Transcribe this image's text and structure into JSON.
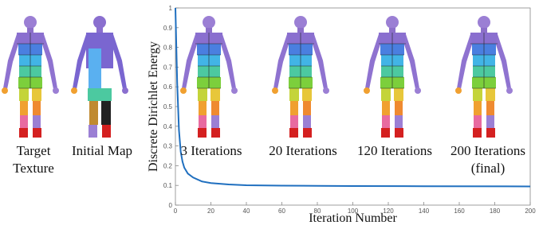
{
  "chart_data": {
    "type": "line",
    "x_label": "Iteration Number",
    "y_label": "Discrete Dirichlet Energy",
    "x": [
      0,
      1,
      2,
      3,
      4,
      5,
      7,
      10,
      15,
      20,
      30,
      40,
      60,
      80,
      100,
      140,
      200
    ],
    "series": [
      {
        "color": "#1f6fbf",
        "values": [
          1,
          0.62,
          0.38,
          0.27,
          0.22,
          0.19,
          0.16,
          0.14,
          0.12,
          0.112,
          0.105,
          0.101,
          0.099,
          0.098,
          0.097,
          0.096,
          0.095
        ]
      }
    ],
    "xlim": [
      0,
      200
    ],
    "ylim": [
      0,
      1
    ],
    "xticks": [
      0,
      20,
      40,
      60,
      80,
      100,
      120,
      140,
      160,
      180,
      200
    ],
    "yticks": [
      0,
      0.1,
      0.2,
      0.3,
      0.4,
      0.5,
      0.6,
      0.7,
      0.8,
      0.9,
      1
    ]
  },
  "left_panels": [
    {
      "caption": [
        "Target",
        "Texture"
      ]
    },
    {
      "caption": [
        "Initial Map"
      ]
    }
  ],
  "insets": [
    {
      "caption": [
        "3 Iterations"
      ]
    },
    {
      "caption": [
        "20 Iterations"
      ]
    },
    {
      "caption": [
        "120 Iterations"
      ]
    },
    {
      "caption": [
        "200 Iterations",
        "(final)"
      ]
    }
  ]
}
